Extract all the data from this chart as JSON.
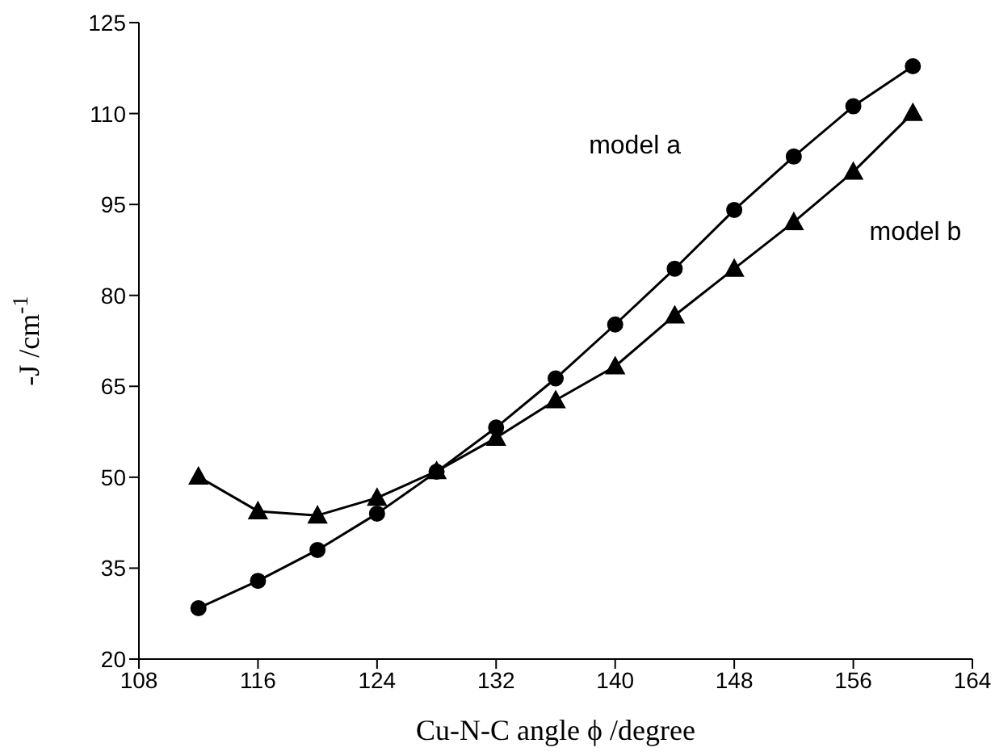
{
  "chart_data": {
    "type": "line",
    "xlabel": "Cu-N-C angle ϕ /degree",
    "ylabel": "-J /cm$^{-1}$",
    "x": [
      112,
      116,
      120,
      124,
      128,
      132,
      136,
      140,
      144,
      148,
      152,
      156,
      160
    ],
    "series": [
      {
        "name": "model a",
        "color": "#000000",
        "marker": "circle",
        "values": [
          28.4,
          32.9,
          38.0,
          44.0,
          50.9,
          58.2,
          66.3,
          75.2,
          84.4,
          94.1,
          102.9,
          111.2,
          117.8
        ]
      },
      {
        "name": "model b",
        "color": "#000000",
        "marker": "triangle",
        "values": [
          50.1,
          44.4,
          43.7,
          46.6,
          51.0,
          56.5,
          62.7,
          68.3,
          76.7,
          84.4,
          92.1,
          100.4,
          110.1
        ]
      }
    ],
    "xlim": [
      108,
      164
    ],
    "xticks": [
      108,
      116,
      124,
      132,
      140,
      148,
      156,
      164
    ],
    "ylim": [
      20,
      125
    ],
    "yticks": [
      20,
      35,
      50,
      65,
      80,
      95,
      110,
      125
    ],
    "grid": false,
    "legend": false,
    "line_style": "solid"
  }
}
